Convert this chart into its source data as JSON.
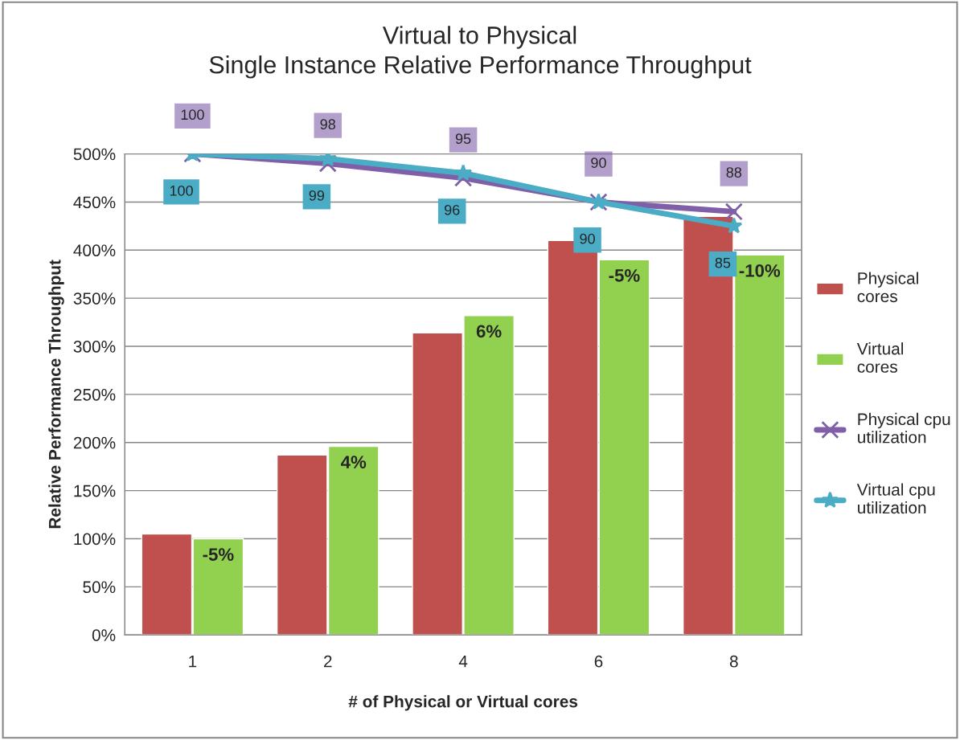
{
  "chart_data": {
    "type": "bar",
    "title": "Virtual to Physical",
    "subtitle": "Single Instance Relative Performance Throughput",
    "xlabel": "# of Physical or Virtual cores",
    "ylabel": "Relative Performance Throughput",
    "categories": [
      "1",
      "2",
      "4",
      "6",
      "8"
    ],
    "series": [
      {
        "name": "Physical cores",
        "color": "#c0504d",
        "values": [
          105,
          187,
          314,
          410,
          435
        ]
      },
      {
        "name": "Virtual cores",
        "color": "#92d050",
        "values": [
          100,
          196,
          332,
          390,
          395
        ]
      },
      {
        "name": "Physical cpu utilization",
        "type": "line",
        "axis": "y2",
        "color": "#7f5fa8",
        "marker": "cross",
        "values": [
          100,
          98,
          95,
          90,
          88
        ],
        "value_labels": [
          "100",
          "98",
          "95",
          "90",
          "88"
        ]
      },
      {
        "name": "Virtual cpu utilization",
        "type": "line",
        "axis": "y2",
        "color": "#4bacc6",
        "marker": "star",
        "values": [
          100,
          99,
          96,
          90,
          85
        ],
        "value_labels": [
          "100",
          "99",
          "96",
          "90",
          "85"
        ]
      }
    ],
    "annotations": [
      {
        "text": "-5%",
        "x": "1",
        "y": 100
      },
      {
        "text": "4%",
        "x": "2",
        "y": 196
      },
      {
        "text": "6%",
        "x": "4",
        "y": 332
      },
      {
        "text": "-5%",
        "x": "6",
        "y": 390
      },
      {
        "text": "-10%",
        "x": "8",
        "y": 395
      }
    ],
    "ylim": [
      0,
      500
    ],
    "yticks": [
      {
        "value": 0,
        "label": "0%"
      },
      {
        "value": 50,
        "label": "50%"
      },
      {
        "value": 100,
        "label": "100%"
      },
      {
        "value": 150,
        "label": "150%"
      },
      {
        "value": 200,
        "label": "200%"
      },
      {
        "value": 250,
        "label": "250%"
      },
      {
        "value": 300,
        "label": "300%"
      },
      {
        "value": 350,
        "label": "350%"
      },
      {
        "value": 400,
        "label": "400%"
      },
      {
        "value": 450,
        "label": "450%"
      },
      {
        "value": 500,
        "label": "500%"
      }
    ],
    "y2lim": [
      0,
      100
    ],
    "tick_labels": [
      "x",
      "y"
    ],
    "grid": "y",
    "legend": "right"
  }
}
